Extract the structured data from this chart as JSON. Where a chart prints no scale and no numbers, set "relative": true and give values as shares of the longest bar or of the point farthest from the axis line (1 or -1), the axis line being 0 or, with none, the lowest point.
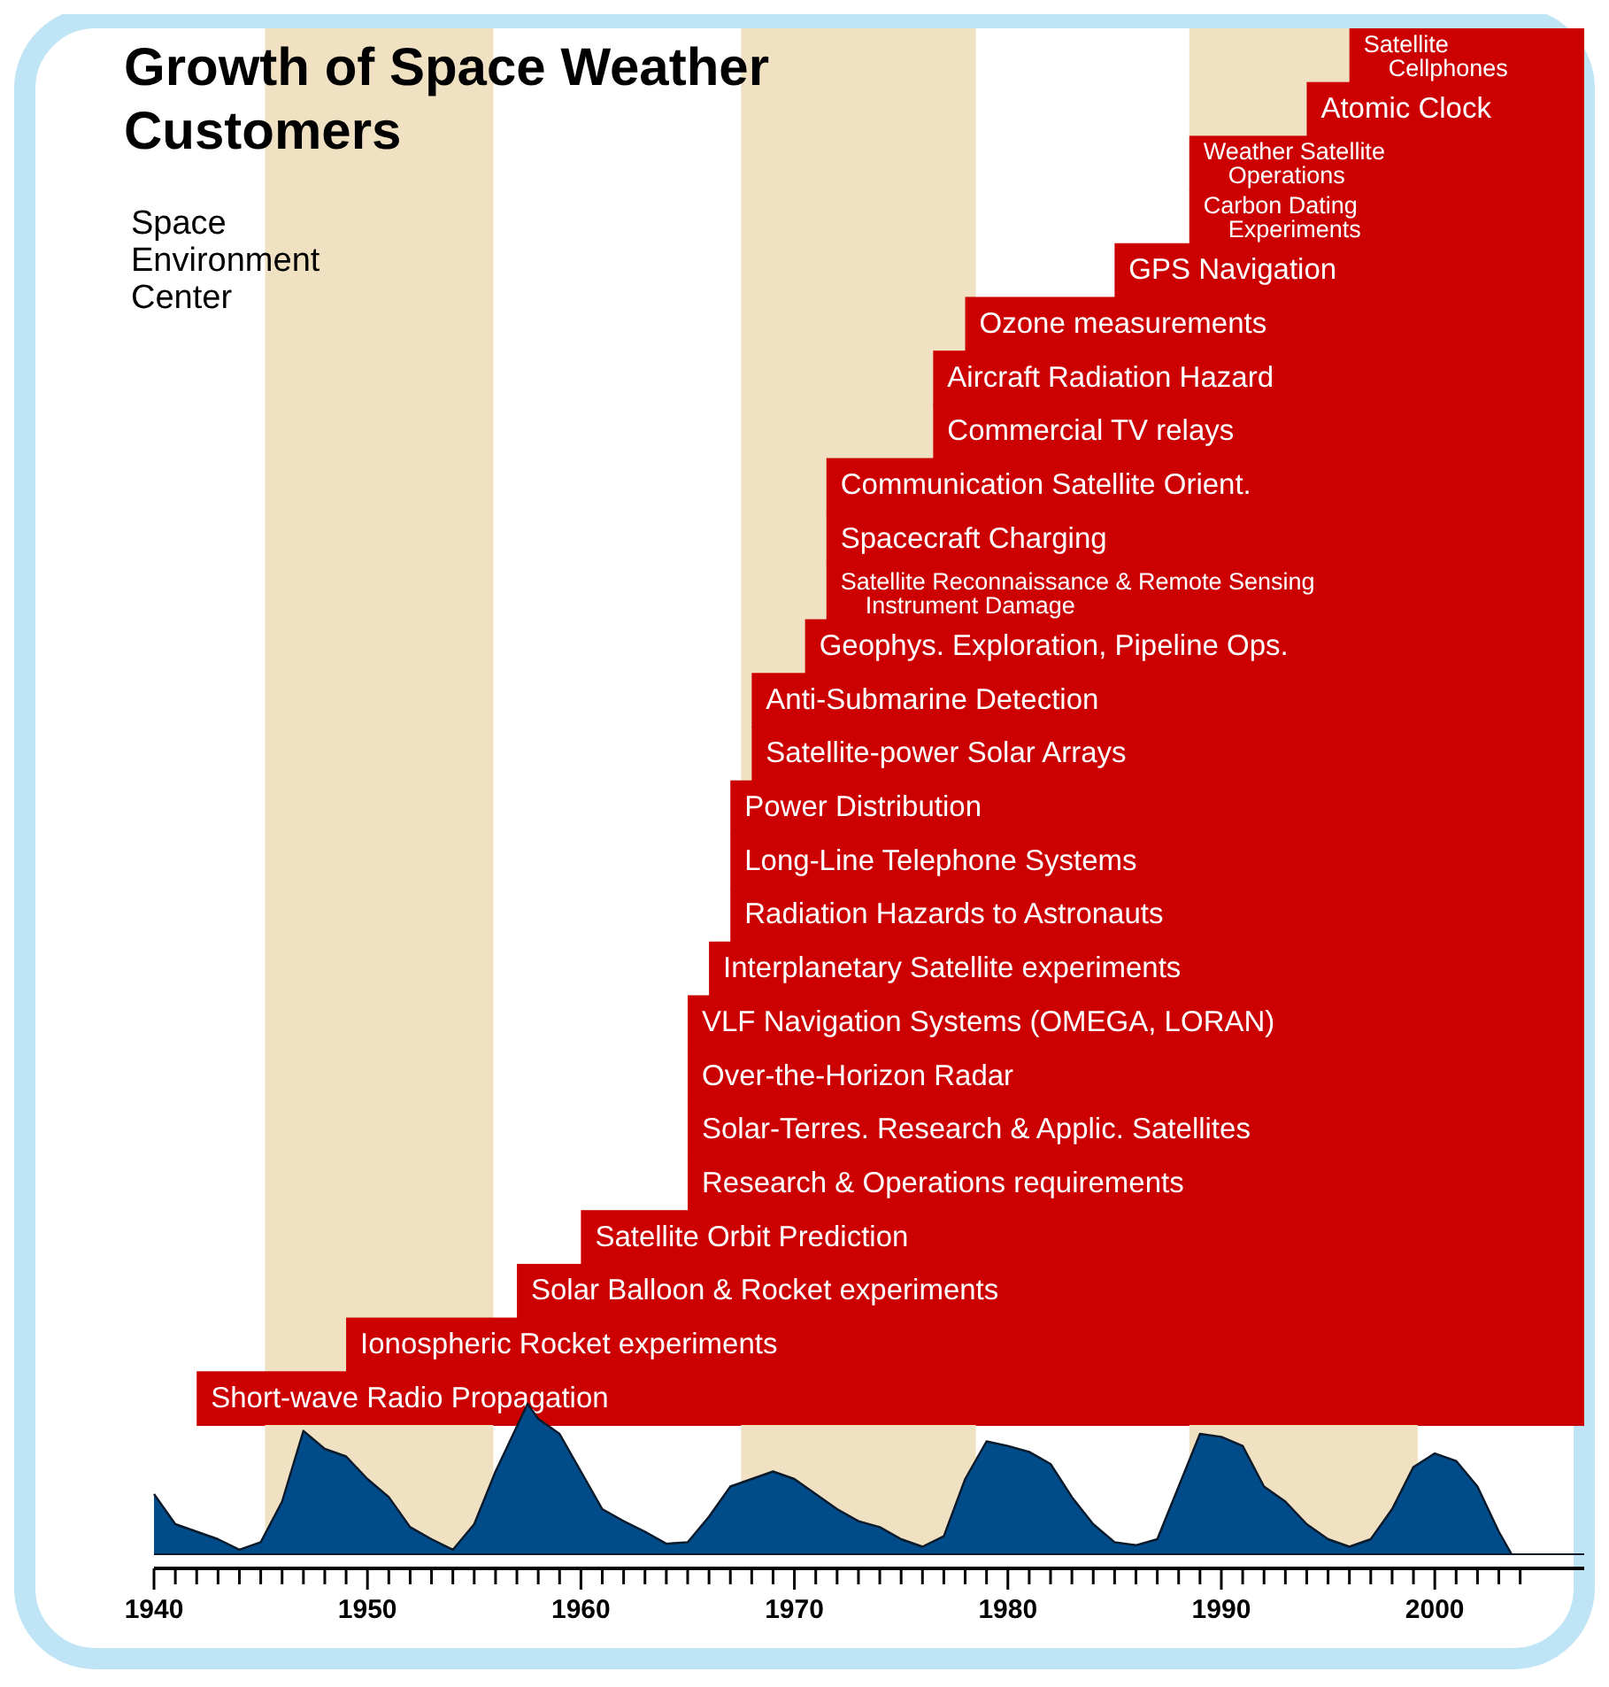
{
  "chart_data": [
    {
      "type": "bar",
      "orientation": "horizontal",
      "title": "Growth of Space Weather Customers",
      "subtitle": "Space Environment Center",
      "categories": [
        "Satellite Cellphones",
        "Atomic Clock",
        "Weather Satellite Operations",
        "Carbon Dating Experiments",
        "GPS Navigation",
        "Ozone measurements",
        "Aircraft Radiation Hazard",
        "Commercial TV relays",
        "Communication Satellite Orient.",
        "Spacecraft Charging",
        "Satellite Reconnaissance & Remote Sensing Instrument Damage",
        "Geophys. Exploration, Pipeline Ops.",
        "Anti-Submarine Detection",
        "Satellite-power Solar Arrays",
        "Power Distribution",
        "Long-Line Telephone Systems",
        "Radiation Hazards to Astronauts",
        "Interplanetary Satellite experiments",
        "VLF Navigation Systems (OMEGA, LORAN)",
        "Over-the-Horizon Radar",
        "Solar-Terres. Research & Applic. Satellites",
        "Research & Operations requirements",
        "Satellite Orbit Prediction",
        "Solar Balloon & Rocket experiments",
        "Ionospheric Rocket experiments",
        "Short-wave Radio Propagation"
      ],
      "base": [
        1996,
        1994,
        1988.5,
        1988.5,
        1985,
        1978,
        1976.5,
        1976.5,
        1971.5,
        1971.5,
        1971.5,
        1970.5,
        1968,
        1968,
        1967,
        1967,
        1967,
        1966,
        1965,
        1965,
        1965,
        1965,
        1960,
        1957,
        1949,
        1942
      ],
      "values": [
        11,
        13,
        18.5,
        18.5,
        22,
        29,
        30.5,
        30.5,
        35.5,
        35.5,
        35.5,
        36.5,
        39,
        39,
        40,
        40,
        40,
        41,
        42,
        42,
        42,
        42,
        47,
        50,
        58,
        65
      ],
      "color": "#cc0000",
      "xlim": [
        1940,
        2007
      ],
      "tick_labels": false,
      "bands": [
        {
          "axis": "x",
          "from": 1945.2,
          "to": 1955.9,
          "color": "#f0e1c3"
        },
        {
          "axis": "x",
          "from": 1967.5,
          "to": 1978.5,
          "color": "#f0e1c3"
        },
        {
          "axis": "x",
          "from": 1988.5,
          "to": 1999.2,
          "color": "#f0e1c3"
        }
      ]
    },
    {
      "type": "area",
      "relative": true,
      "color": "#004b8a",
      "xlim": [
        1940,
        2007
      ],
      "tick_labels": "x",
      "x": [
        1940,
        1941,
        1942,
        1943,
        1944,
        1945,
        1946,
        1947,
        1948,
        1949,
        1950,
        1951,
        1952,
        1953,
        1954,
        1955,
        1956,
        1957.5,
        1958,
        1959,
        1960,
        1961,
        1962,
        1963,
        1964,
        1965,
        1966,
        1967,
        1968,
        1969,
        1970,
        1971,
        1972,
        1973,
        1974,
        1975,
        1976,
        1977,
        1978,
        1979,
        1980,
        1981,
        1982,
        1983,
        1984,
        1985,
        1986,
        1987,
        1988,
        1989,
        1990,
        1991,
        1992,
        1993,
        1994,
        1995,
        1996,
        1997,
        1998,
        1999,
        2000,
        2001,
        2002,
        2003,
        2003.6
      ],
      "values": [
        0.4,
        0.2,
        0.15,
        0.1,
        0.03,
        0.08,
        0.35,
        0.82,
        0.7,
        0.65,
        0.5,
        0.38,
        0.18,
        0.1,
        0.03,
        0.2,
        0.55,
        1.0,
        0.9,
        0.8,
        0.55,
        0.3,
        0.22,
        0.15,
        0.07,
        0.08,
        0.25,
        0.45,
        0.5,
        0.55,
        0.5,
        0.4,
        0.3,
        0.22,
        0.18,
        0.1,
        0.05,
        0.12,
        0.5,
        0.75,
        0.72,
        0.68,
        0.6,
        0.38,
        0.2,
        0.08,
        0.06,
        0.1,
        0.45,
        0.8,
        0.78,
        0.72,
        0.45,
        0.35,
        0.2,
        0.1,
        0.05,
        0.1,
        0.3,
        0.58,
        0.67,
        0.62,
        0.45,
        0.15,
        0
      ],
      "xticks": [
        1940,
        {
          "value": 1941,
          "label": null
        },
        {
          "value": 1942,
          "label": null
        },
        {
          "value": 1943,
          "label": null
        },
        {
          "value": 1944,
          "label": null
        },
        {
          "value": 1945,
          "label": null
        },
        {
          "value": 1946,
          "label": null
        },
        {
          "value": 1947,
          "label": null
        },
        {
          "value": 1948,
          "label": null
        },
        {
          "value": 1949,
          "label": null
        },
        1950,
        {
          "value": 1951,
          "label": null
        },
        {
          "value": 1952,
          "label": null
        },
        {
          "value": 1953,
          "label": null
        },
        {
          "value": 1954,
          "label": null
        },
        {
          "value": 1955,
          "label": null
        },
        {
          "value": 1956,
          "label": null
        },
        {
          "value": 1957,
          "label": null
        },
        {
          "value": 1958,
          "label": null
        },
        {
          "value": 1959,
          "label": null
        },
        1960,
        {
          "value": 1961,
          "label": null
        },
        {
          "value": 1962,
          "label": null
        },
        {
          "value": 1963,
          "label": null
        },
        {
          "value": 1964,
          "label": null
        },
        {
          "value": 1965,
          "label": null
        },
        {
          "value": 1966,
          "label": null
        },
        {
          "value": 1967,
          "label": null
        },
        {
          "value": 1968,
          "label": null
        },
        {
          "value": 1969,
          "label": null
        },
        1970,
        {
          "value": 1971,
          "label": null
        },
        {
          "value": 1972,
          "label": null
        },
        {
          "value": 1973,
          "label": null
        },
        {
          "value": 1974,
          "label": null
        },
        {
          "value": 1975,
          "label": null
        },
        {
          "value": 1976,
          "label": null
        },
        {
          "value": 1977,
          "label": null
        },
        {
          "value": 1978,
          "label": null
        },
        {
          "value": 1979,
          "label": null
        },
        1980,
        {
          "value": 1981,
          "label": null
        },
        {
          "value": 1982,
          "label": null
        },
        {
          "value": 1983,
          "label": null
        },
        {
          "value": 1984,
          "label": null
        },
        {
          "value": 1985,
          "label": null
        },
        {
          "value": 1986,
          "label": null
        },
        {
          "value": 1987,
          "label": null
        },
        {
          "value": 1988,
          "label": null
        },
        {
          "value": 1989,
          "label": null
        },
        1990,
        {
          "value": 1991,
          "label": null
        },
        {
          "value": 1992,
          "label": null
        },
        {
          "value": 1993,
          "label": null
        },
        {
          "value": 1994,
          "label": null
        },
        {
          "value": 1995,
          "label": null
        },
        {
          "value": 1996,
          "label": null
        },
        {
          "value": 1997,
          "label": null
        },
        {
          "value": 1998,
          "label": null
        },
        {
          "value": 1999,
          "label": null
        },
        2000,
        {
          "value": 2001,
          "label": null
        },
        {
          "value": 2002,
          "label": null
        },
        {
          "value": 2003,
          "label": null
        },
        {
          "value": 2004,
          "label": null
        }
      ],
      "bands": [
        {
          "axis": "x",
          "from": 1945.2,
          "to": 1955.9,
          "color": "#f0e1c3"
        },
        {
          "axis": "x",
          "from": 1967.5,
          "to": 1978.5,
          "color": "#f0e1c3"
        },
        {
          "axis": "x",
          "from": 1988.5,
          "to": 1999.2,
          "color": "#f0e1c3"
        }
      ]
    }
  ]
}
